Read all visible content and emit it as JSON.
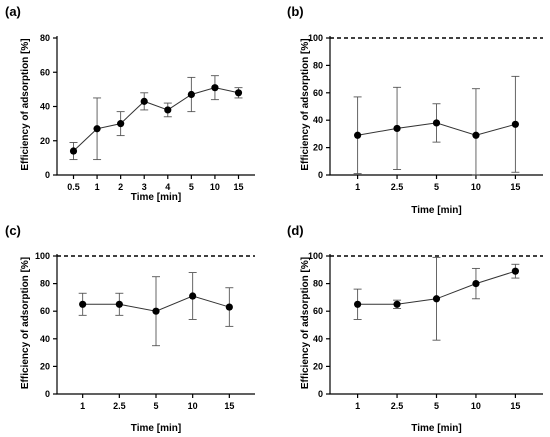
{
  "chart_data": [
    {
      "panel_label": "(a)",
      "type": "line",
      "categories": [
        "0.5",
        "1",
        "2",
        "3",
        "4",
        "5",
        "10",
        "15"
      ],
      "series": [
        {
          "values": [
            14,
            27,
            30,
            43,
            38,
            47,
            51,
            48
          ],
          "errors": [
            5,
            18,
            7,
            5,
            4,
            10,
            7,
            3
          ]
        }
      ],
      "xlabel": "Time [min]",
      "ylabel": "Efficiency of adsorption [%]",
      "ylim": [
        0,
        80
      ],
      "yticks": [
        "0",
        "20",
        "40",
        "60",
        "80"
      ],
      "reference_line": null
    },
    {
      "panel_label": "(b)",
      "type": "line",
      "categories": [
        "1",
        "2.5",
        "5",
        "10",
        "15"
      ],
      "series": [
        {
          "values": [
            29,
            34,
            38,
            29,
            37
          ],
          "errors": [
            28,
            30,
            14,
            34,
            35
          ]
        }
      ],
      "xlabel": "Time [min]",
      "ylabel": "Efficiency of adsorption [%]",
      "ylim": [
        0,
        100
      ],
      "yticks": [
        "0",
        "20",
        "40",
        "60",
        "80",
        "100"
      ],
      "reference_line": 100
    },
    {
      "panel_label": "(c)",
      "type": "line",
      "categories": [
        "1",
        "2.5",
        "5",
        "10",
        "15"
      ],
      "series": [
        {
          "values": [
            65,
            65,
            60,
            71,
            63
          ],
          "errors": [
            8,
            8,
            25,
            17,
            14
          ]
        }
      ],
      "xlabel": "Time [min]",
      "ylabel": "Efficiency of adsorption [%]",
      "ylim": [
        0,
        100
      ],
      "yticks": [
        "0",
        "20",
        "40",
        "60",
        "80",
        "100"
      ],
      "reference_line": 100
    },
    {
      "panel_label": "(d)",
      "type": "line",
      "categories": [
        "1",
        "2.5",
        "5",
        "10",
        "15"
      ],
      "series": [
        {
          "values": [
            65,
            65,
            69,
            80,
            89
          ],
          "errors": [
            11,
            3,
            30,
            11,
            5
          ]
        }
      ],
      "xlabel": "Time [min]",
      "ylabel": "Efficiency of adsorption [%]",
      "ylim": [
        0,
        100
      ],
      "yticks": [
        "0",
        "20",
        "40",
        "60",
        "80",
        "100"
      ],
      "reference_line": 100
    }
  ]
}
